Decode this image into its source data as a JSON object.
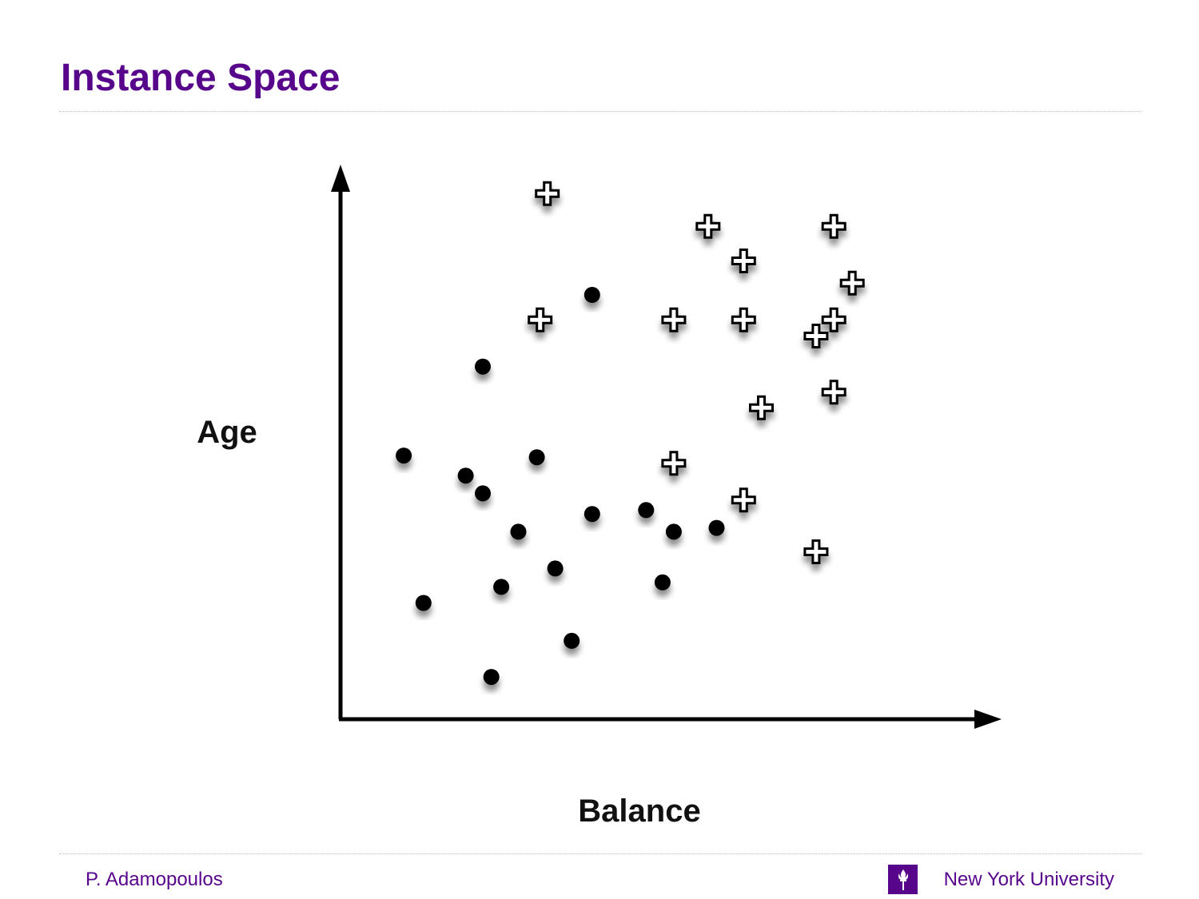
{
  "slide": {
    "title": "Instance Space"
  },
  "footer": {
    "author": "P. Adamopoulos",
    "organization": "New York University"
  },
  "colors": {
    "brand": "#57068c",
    "marker": "#000000"
  },
  "icons": {
    "logo": "nyu-torch-icon"
  },
  "chart_data": {
    "type": "scatter",
    "xlabel": "Balance",
    "ylabel": "Age",
    "xlim": [
      0,
      100
    ],
    "ylim": [
      0,
      100
    ],
    "grid": false,
    "series": [
      {
        "marker": "dot",
        "points": [
          [
            38.2,
            76.3
          ],
          [
            21.6,
            63.4
          ],
          [
            9.6,
            47.4
          ],
          [
            29.8,
            47.1
          ],
          [
            19.0,
            43.8
          ],
          [
            21.6,
            40.6
          ],
          [
            27.0,
            33.7
          ],
          [
            38.2,
            36.9
          ],
          [
            46.4,
            37.6
          ],
          [
            50.6,
            33.7
          ],
          [
            57.1,
            34.4
          ],
          [
            12.6,
            20.9
          ],
          [
            24.4,
            23.8
          ],
          [
            32.6,
            27.1
          ],
          [
            48.9,
            24.6
          ],
          [
            35.1,
            14.1
          ],
          [
            22.9,
            7.6
          ]
        ]
      },
      {
        "marker": "plus",
        "points": [
          [
            31.4,
            94.5
          ],
          [
            55.8,
            88.6
          ],
          [
            74.9,
            88.6
          ],
          [
            61.2,
            82.4
          ],
          [
            77.7,
            78.4
          ],
          [
            30.3,
            71.8
          ],
          [
            50.6,
            71.8
          ],
          [
            61.2,
            71.8
          ],
          [
            74.9,
            71.8
          ],
          [
            72.2,
            68.9
          ],
          [
            74.9,
            58.8
          ],
          [
            63.9,
            56.0
          ],
          [
            50.6,
            46.0
          ],
          [
            61.2,
            39.4
          ],
          [
            72.2,
            30.1
          ]
        ]
      }
    ]
  }
}
